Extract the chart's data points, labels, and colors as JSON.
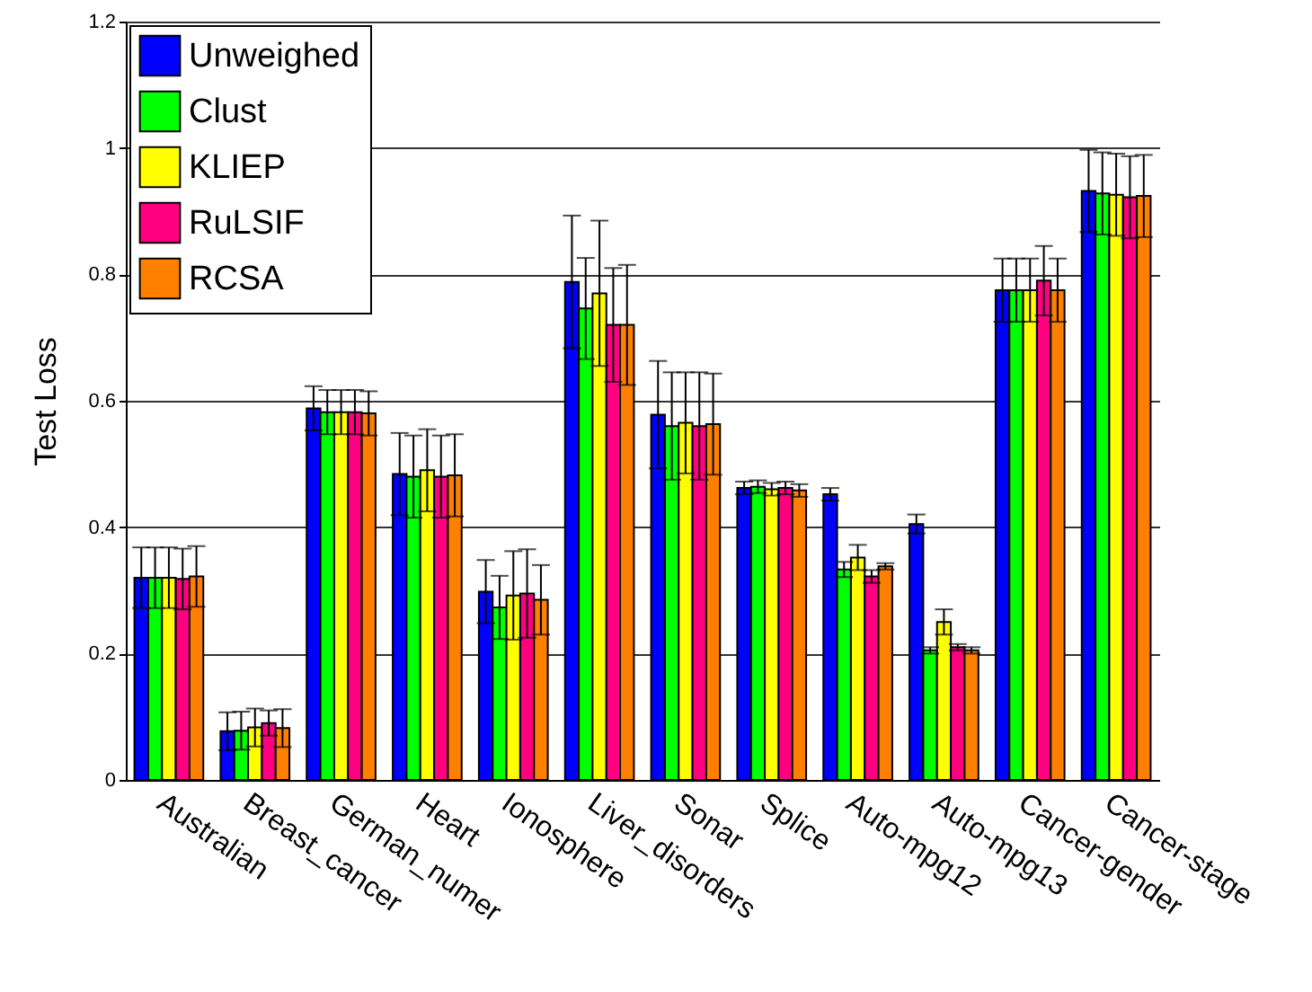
{
  "chart_data": {
    "type": "bar",
    "ylabel": "Test Loss",
    "categories": [
      "Australian",
      "Breast_cancer",
      "German_numer",
      "Heart",
      "Ionosphere",
      "Liver_disorders",
      "Sonar",
      "Splice",
      "Auto-mpg12",
      "Auto-mpg13",
      "Cancer-gender",
      "Cancer-stage"
    ],
    "series": [
      {
        "name": "Unweighed",
        "color": "#0000ff",
        "values": [
          0.32,
          0.077,
          0.588,
          0.484,
          0.298,
          0.788,
          0.578,
          0.462,
          0.452,
          0.405,
          0.775,
          0.932
        ],
        "errors": [
          0.048,
          0.03,
          0.035,
          0.065,
          0.05,
          0.105,
          0.085,
          0.01,
          0.01,
          0.015,
          0.05,
          0.065
        ]
      },
      {
        "name": "Clust",
        "color": "#00ff00",
        "values": [
          0.32,
          0.078,
          0.582,
          0.48,
          0.273,
          0.746,
          0.56,
          0.464,
          0.333,
          0.205,
          0.775,
          0.928
        ],
        "errors": [
          0.048,
          0.03,
          0.035,
          0.065,
          0.05,
          0.08,
          0.085,
          0.01,
          0.012,
          0.005,
          0.05,
          0.065
        ]
      },
      {
        "name": "KLIEP",
        "color": "#ffff00",
        "values": [
          0.32,
          0.083,
          0.582,
          0.49,
          0.292,
          0.77,
          0.565,
          0.46,
          0.352,
          0.25,
          0.775,
          0.926
        ],
        "errors": [
          0.048,
          0.03,
          0.035,
          0.065,
          0.07,
          0.115,
          0.08,
          0.01,
          0.02,
          0.02,
          0.05,
          0.065
        ]
      },
      {
        "name": "RuLSIF",
        "color": "#ff0080",
        "values": [
          0.318,
          0.09,
          0.582,
          0.48,
          0.295,
          0.72,
          0.56,
          0.462,
          0.322,
          0.21,
          0.79,
          0.922
        ],
        "errors": [
          0.048,
          0.02,
          0.035,
          0.065,
          0.07,
          0.09,
          0.085,
          0.01,
          0.01,
          0.005,
          0.055,
          0.065
        ]
      },
      {
        "name": "RCSA",
        "color": "#ff8000",
        "values": [
          0.322,
          0.082,
          0.58,
          0.482,
          0.285,
          0.72,
          0.563,
          0.458,
          0.338,
          0.205,
          0.775,
          0.924
        ],
        "errors": [
          0.048,
          0.03,
          0.035,
          0.065,
          0.055,
          0.095,
          0.08,
          0.01,
          0.005,
          0.005,
          0.05,
          0.065
        ]
      }
    ],
    "ylim": [
      0,
      1.2
    ],
    "yticks": [
      0,
      0.2,
      0.4,
      0.6,
      0.8,
      1,
      1.2
    ],
    "grid": "y",
    "legend": "top left"
  }
}
